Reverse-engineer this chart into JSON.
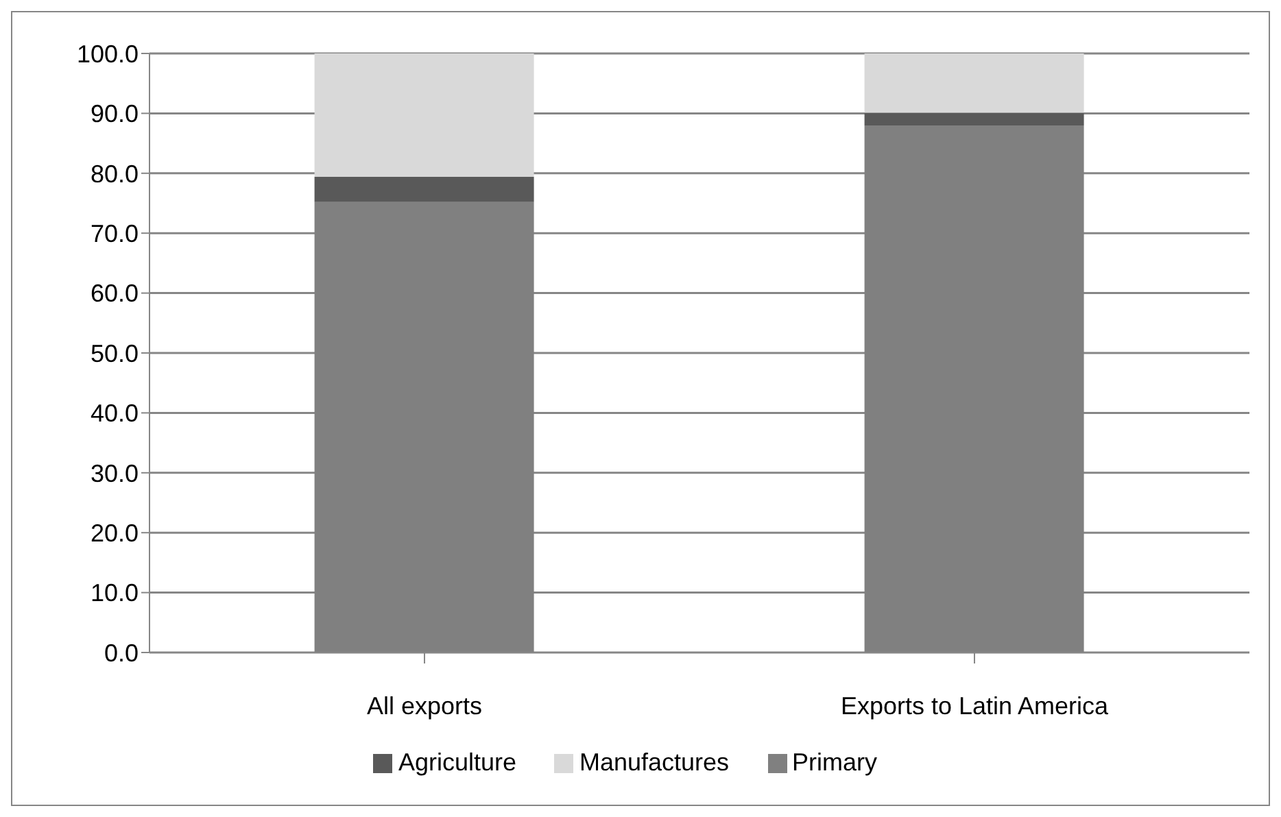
{
  "chart_data": {
    "type": "bar",
    "stacked": true,
    "categories": [
      "All exports",
      "Exports to Latin America"
    ],
    "series": [
      {
        "name": "Primary",
        "color": "#808080",
        "values": [
          75.2,
          88.0
        ]
      },
      {
        "name": "Agriculture",
        "color": "#595959",
        "values": [
          4.2,
          2.1
        ]
      },
      {
        "name": "Manufactures",
        "color": "#d9d9d9",
        "values": [
          20.6,
          9.9
        ]
      }
    ],
    "ylim": [
      0,
      100
    ],
    "yticks": [
      {
        "value": 0,
        "label": "0.0"
      },
      {
        "value": 10,
        "label": "10.0"
      },
      {
        "value": 20,
        "label": "20.0"
      },
      {
        "value": 30,
        "label": "30.0"
      },
      {
        "value": 40,
        "label": "40.0"
      },
      {
        "value": 50,
        "label": "50.0"
      },
      {
        "value": 60,
        "label": "60.0"
      },
      {
        "value": 70,
        "label": "70.0"
      },
      {
        "value": 80,
        "label": "80.0"
      },
      {
        "value": 90,
        "label": "90.0"
      },
      {
        "value": 100,
        "label": "100.0"
      }
    ],
    "grid": "y",
    "legend": "bottom"
  }
}
